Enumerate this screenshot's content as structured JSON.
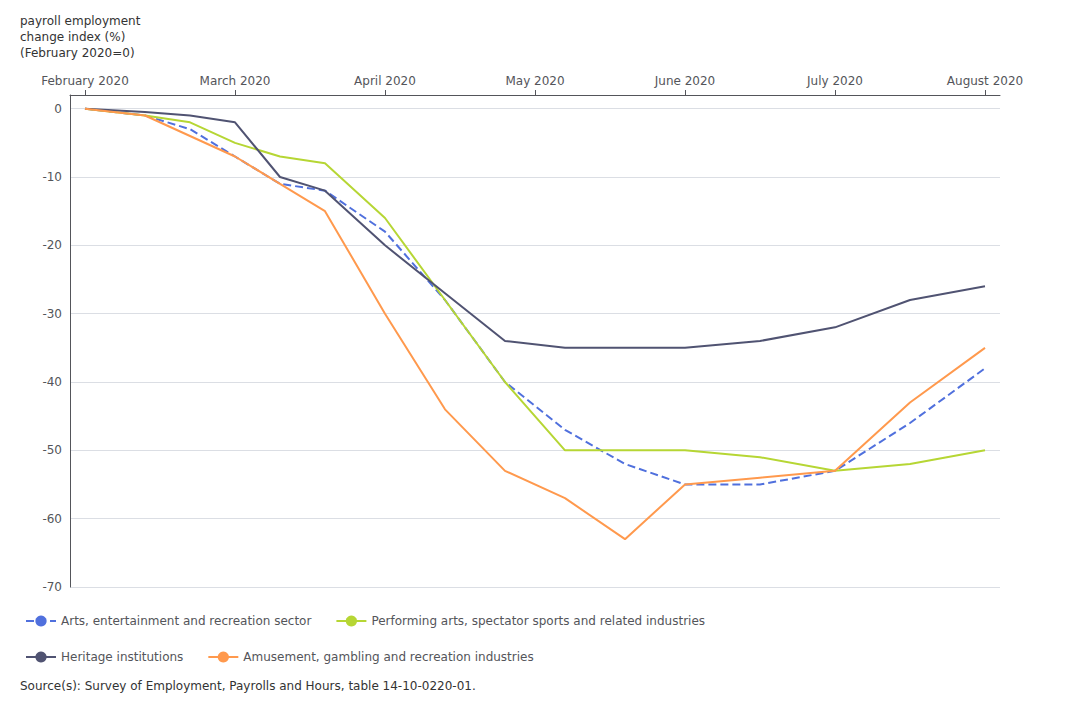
{
  "chart_data": {
    "type": "line",
    "ylabel": "payroll employment\nchange index (%)\n(February 2020=0)",
    "x": [
      0,
      0.4,
      0.7,
      1.0,
      1.3,
      1.6,
      2.0,
      2.4,
      2.8,
      3.2,
      3.6,
      4.0,
      4.5,
      5.0,
      5.5,
      6.0
    ],
    "xlim": [
      -0.1,
      6.1
    ],
    "xticks": [
      {
        "value": 0,
        "label": "February 2020"
      },
      {
        "value": 1,
        "label": "March 2020"
      },
      {
        "value": 2,
        "label": "April 2020"
      },
      {
        "value": 3,
        "label": "May 2020"
      },
      {
        "value": 4,
        "label": "June 2020"
      },
      {
        "value": 5,
        "label": "July 2020"
      },
      {
        "value": 6,
        "label": "August 2020"
      }
    ],
    "ylim": [
      -70,
      2
    ],
    "yticks": [
      0,
      -10,
      -20,
      -30,
      -40,
      -50,
      -60,
      -70
    ],
    "grid": true,
    "legend": "lower left",
    "series": [
      {
        "name": "Arts, entertainment and recreation sector",
        "line_style": "dashed",
        "values": [
          0,
          -1,
          -3,
          -7,
          -11,
          -12,
          -18,
          -28,
          -40,
          -47,
          -52,
          -55,
          -55,
          -53,
          -46,
          -38
        ]
      },
      {
        "name": "Performing arts, spectator sports and related industries",
        "line_style": "solid",
        "values": [
          0,
          -1,
          -2,
          -5,
          -7,
          -8,
          -16,
          -28,
          -40,
          -50,
          -50,
          -50,
          -51,
          -53,
          -52,
          -50
        ]
      },
      {
        "name": "Heritage institutions",
        "line_style": "solid",
        "values": [
          0,
          -0.5,
          -1,
          -2,
          -10,
          -12,
          -20,
          -27,
          -34,
          -35,
          -35,
          -35,
          -34,
          -32,
          -28,
          -26
        ]
      },
      {
        "name": "Amusement, gambling and recreation industries",
        "line_style": "solid",
        "values": [
          0,
          -1,
          -4,
          -7,
          -11,
          -15,
          -30,
          -44,
          -53,
          -57,
          -63,
          -55,
          -54,
          -53,
          -43,
          -35
        ]
      }
    ],
    "annotations": [
      "Source(s): Survey of Employment, Payrolls and Hours, table 14-10-0220-01."
    ]
  }
}
